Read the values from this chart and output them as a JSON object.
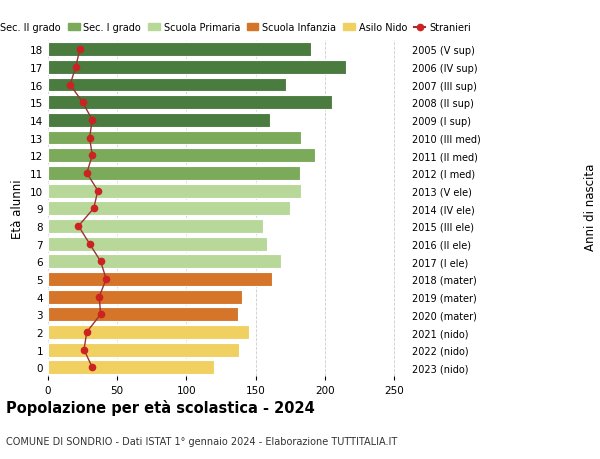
{
  "ages": [
    18,
    17,
    16,
    15,
    14,
    13,
    12,
    11,
    10,
    9,
    8,
    7,
    6,
    5,
    4,
    3,
    2,
    1,
    0
  ],
  "bar_values": [
    190,
    215,
    172,
    205,
    160,
    183,
    193,
    182,
    183,
    175,
    155,
    158,
    168,
    162,
    140,
    137,
    145,
    138,
    120
  ],
  "stranieri": [
    23,
    20,
    16,
    25,
    32,
    30,
    32,
    28,
    36,
    33,
    22,
    30,
    38,
    42,
    37,
    38,
    28,
    26,
    32
  ],
  "right_labels": [
    "2005 (V sup)",
    "2006 (IV sup)",
    "2007 (III sup)",
    "2008 (II sup)",
    "2009 (I sup)",
    "2010 (III med)",
    "2011 (II med)",
    "2012 (I med)",
    "2013 (V ele)",
    "2014 (IV ele)",
    "2015 (III ele)",
    "2016 (II ele)",
    "2017 (I ele)",
    "2018 (mater)",
    "2019 (mater)",
    "2020 (mater)",
    "2021 (nido)",
    "2022 (nido)",
    "2023 (nido)"
  ],
  "bar_colors": [
    "#4a7c40",
    "#4a7c40",
    "#4a7c40",
    "#4a7c40",
    "#4a7c40",
    "#7aaa5a",
    "#7aaa5a",
    "#7aaa5a",
    "#b8d89a",
    "#b8d89a",
    "#b8d89a",
    "#b8d89a",
    "#b8d89a",
    "#d4752a",
    "#d4752a",
    "#d4752a",
    "#f0d060",
    "#f0d060",
    "#f0d060"
  ],
  "legend_labels": [
    "Sec. II grado",
    "Sec. I grado",
    "Scuola Primaria",
    "Scuola Infanzia",
    "Asilo Nido",
    "Stranieri"
  ],
  "legend_colors": [
    "#4a7c40",
    "#7aaa5a",
    "#b8d89a",
    "#d4752a",
    "#f0d060",
    "#cc2222"
  ],
  "ylabel_left": "Età alunni",
  "ylabel_right": "Anni di nascita",
  "title": "Popolazione per età scolastica - 2024",
  "subtitle": "COMUNE DI SONDRIO - Dati ISTAT 1° gennaio 2024 - Elaborazione TUTTITALIA.IT",
  "xlim": [
    0,
    260
  ],
  "bg_color": "#ffffff",
  "grid_color": "#cccccc",
  "stranieri_color": "#cc2222",
  "stranieri_line_color": "#993333"
}
